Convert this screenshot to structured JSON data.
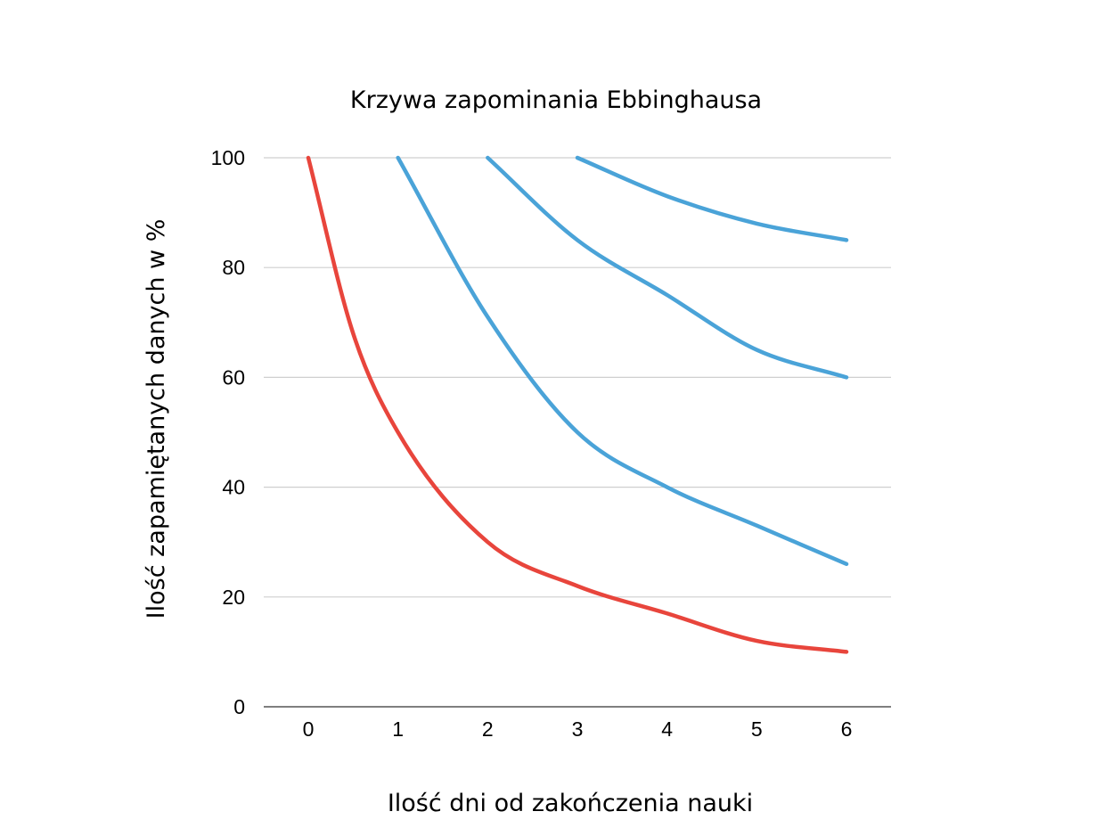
{
  "chart_data": {
    "type": "line",
    "title": "Krzywa zapominania Ebbinghausa",
    "xlabel": "Ilość dni od zakończenia nauki",
    "ylabel": "Ilość zapamiętanych danych w %",
    "x_ticks": [
      "0",
      "1",
      "2",
      "3",
      "4",
      "5",
      "6"
    ],
    "y_ticks": [
      "0",
      "20",
      "40",
      "60",
      "80",
      "100"
    ],
    "xlim": [
      0,
      6
    ],
    "ylim": [
      0,
      100
    ],
    "grid": "horizontal",
    "series": [
      {
        "color": "#e8453c",
        "points": [
          [
            0,
            100
          ],
          [
            0.5,
            68
          ],
          [
            1,
            50
          ],
          [
            2,
            30
          ],
          [
            3,
            22
          ],
          [
            4,
            17
          ],
          [
            5,
            12
          ],
          [
            6,
            10
          ]
        ]
      },
      {
        "color": "#4aa3d8",
        "points": [
          [
            1,
            100
          ],
          [
            2,
            71
          ],
          [
            3,
            50
          ],
          [
            4,
            40
          ],
          [
            5,
            33
          ],
          [
            6,
            26
          ]
        ]
      },
      {
        "color": "#4aa3d8",
        "points": [
          [
            2,
            100
          ],
          [
            3,
            85
          ],
          [
            4,
            75
          ],
          [
            5,
            65
          ],
          [
            6,
            60
          ]
        ]
      },
      {
        "color": "#4aa3d8",
        "points": [
          [
            3,
            100
          ],
          [
            4,
            93
          ],
          [
            5,
            88
          ],
          [
            6,
            85
          ]
        ]
      }
    ]
  }
}
